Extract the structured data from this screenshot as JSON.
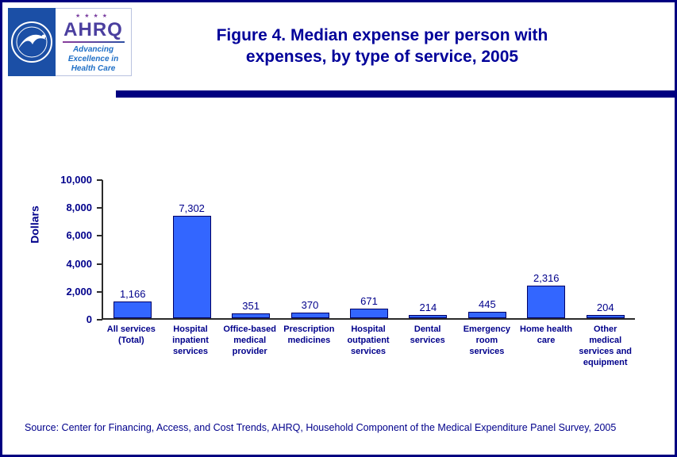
{
  "page": {
    "border_color": "#000080"
  },
  "header": {
    "title": "Figure 4. Median expense per person with\nexpenses, by type of service, 2005",
    "logos": {
      "ahrq_acronym": "AHRQ",
      "ahrq_stars": "★★★★",
      "ahrq_tagline": "Advancing\nExcellence in\nHealth Care"
    }
  },
  "chart_data": {
    "type": "bar",
    "title": "Figure 4. Median expense per person with expenses, by type of service, 2005",
    "xlabel": "",
    "ylabel": "Dollars",
    "ylim": [
      0,
      10000
    ],
    "ytick_interval": 2000,
    "ytick_labels": [
      "0",
      "2,000",
      "4,000",
      "6,000",
      "8,000",
      "10,000"
    ],
    "grid": false,
    "legend": "none",
    "bar_color": "#3366FF",
    "bar_border_color": "#000066",
    "categories": [
      "All services (Total)",
      "Hospital inpatient services",
      "Office-based medical provider",
      "Prescription medicines",
      "Hospital outpatient services",
      "Dental services",
      "Emergency room services",
      "Home health care",
      "Other medical services and equipment"
    ],
    "category_labels": [
      "All services\n(Total)",
      "Hospital\ninpatient\nservices",
      "Office-based\nmedical\nprovider",
      "Prescription\nmedicines",
      "Hospital\noutpatient\nservices",
      "Dental\nservices",
      "Emergency\nroom\nservices",
      "Home health\ncare",
      "Other\nmedical\nservices and\nequipment"
    ],
    "values": [
      1166,
      7302,
      351,
      370,
      671,
      214,
      445,
      2316,
      204
    ],
    "value_labels": [
      "1,166",
      "7,302",
      "351",
      "370",
      "671",
      "214",
      "445",
      "2,316",
      "204"
    ]
  },
  "footer": {
    "source": "Source: Center for Financing, Access, and Cost Trends, AHRQ, Household Component of the Medical Expenditure Panel Survey, 2005"
  }
}
